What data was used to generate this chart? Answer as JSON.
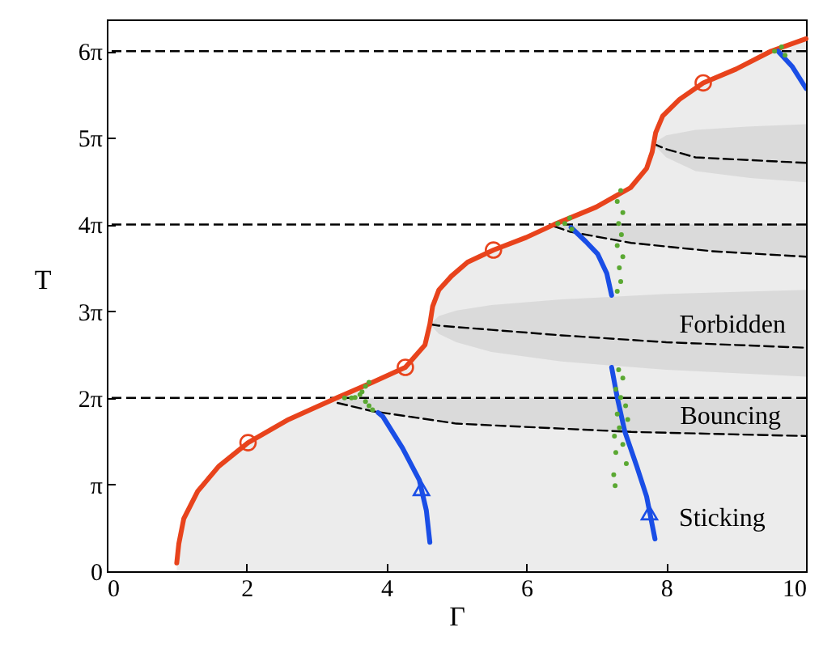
{
  "chart_data": {
    "type": "line",
    "xlabel": "Γ",
    "ylabel": "T",
    "xlim": [
      0,
      10
    ],
    "ylim": [
      0,
      20
    ],
    "xticks": [
      0,
      2,
      4,
      6,
      8,
      10
    ],
    "yticks": [
      0,
      {
        "value": 3.1416,
        "label": "π"
      },
      {
        "value": 6.2832,
        "label": "2π"
      },
      {
        "value": 9.4248,
        "label": "3π"
      },
      {
        "value": 12.5664,
        "label": "4π"
      },
      {
        "value": 15.708,
        "label": "5π"
      },
      {
        "value": 18.8496,
        "label": "6π"
      }
    ],
    "grid": false,
    "series": [
      {
        "type": "line",
        "color": "#000000",
        "line_style": "dashed",
        "x": [
          3.3,
          3.8,
          5.0,
          7.5,
          10
        ],
        "values": [
          6.1,
          5.8,
          5.35,
          5.05,
          4.9
        ],
        "lower": [
          6.1,
          5.8,
          5.35,
          5.05,
          4.9
        ],
        "upper": [
          6.2832,
          6.2832,
          6.2832,
          6.2832,
          6.2832
        ]
      },
      {
        "type": "line",
        "color": "#000000",
        "line_style": "dashed",
        "x": [
          6.4,
          6.63,
          7.5,
          8.65,
          10
        ],
        "values": [
          12.5,
          12.3,
          11.9,
          11.6,
          11.4
        ],
        "lower": [
          12.5,
          12.3,
          11.9,
          11.6,
          11.4
        ],
        "upper": [
          12.5664,
          12.5664,
          12.5664,
          12.5664,
          12.5664
        ]
      },
      {
        "type": "line",
        "color": "#000000",
        "line_style": "dashed",
        "x": [
          4.62,
          4.75,
          5.0,
          5.5,
          6.5,
          8,
          10
        ],
        "values": [
          8.95,
          8.9,
          8.85,
          8.75,
          8.55,
          8.3,
          8.1
        ],
        "lower": [
          8.95,
          8.6,
          8.3,
          7.95,
          7.6,
          7.3,
          7.05
        ],
        "upper": [
          8.95,
          9.25,
          9.45,
          9.65,
          9.85,
          10.05,
          10.2
        ]
      },
      {
        "type": "line",
        "color": "#000000",
        "line_style": "dashed",
        "x": [
          7.81,
          8.0,
          8.42,
          9.2,
          10
        ],
        "values": [
          15.5,
          15.3,
          15.0,
          14.9,
          14.8
        ],
        "lower": [
          15.5,
          15.0,
          14.5,
          14.25,
          14.1
        ],
        "upper": [
          15.5,
          15.8,
          16.0,
          16.12,
          16.2
        ]
      },
      {
        "color": "#1a4ee6",
        "line_style": "solid",
        "x": [
          3.88,
          3.95,
          4.23,
          4.47,
          4.57,
          4.62
        ],
        "values": [
          5.75,
          5.6,
          4.46,
          3.3,
          2.2,
          1.05
        ]
      },
      {
        "color": "#1a4ee6",
        "line_style": "solid",
        "x": [
          6.64,
          6.85,
          7.02,
          7.15,
          7.22
        ],
        "values": [
          12.46,
          11.95,
          11.5,
          10.8,
          10.0
        ]
      },
      {
        "color": "#1a4ee6",
        "line_style": "solid",
        "x": [
          7.22,
          7.3,
          7.41,
          7.58,
          7.72,
          7.84
        ],
        "values": [
          7.39,
          6.3,
          5.05,
          3.8,
          2.71,
          1.17
        ]
      },
      {
        "color": "#1a4ee6",
        "line_style": "solid",
        "x": [
          9.6,
          9.8,
          10
        ],
        "values": [
          18.85,
          18.3,
          17.5
        ]
      },
      {
        "type": "scatter",
        "color": "#5aa832",
        "marker": "circle",
        "x": [
          3.4,
          3.5,
          3.55,
          3.62,
          3.65,
          3.7,
          3.75,
          3.7,
          3.75,
          3.8,
          6.45,
          6.55,
          6.62,
          6.65,
          7.35,
          7.3,
          7.38,
          7.32,
          7.36,
          7.3,
          7.38,
          7.33,
          7.35,
          7.3,
          7.32,
          7.38,
          7.28,
          7.35,
          7.42,
          7.3,
          7.45,
          7.33,
          7.26,
          7.38,
          7.28,
          7.43,
          7.25,
          7.27,
          9.55,
          9.65,
          9.7
        ],
        "values": [
          6.28,
          6.28,
          6.3,
          6.4,
          6.5,
          6.7,
          6.85,
          6.15,
          6.0,
          5.85,
          12.6,
          12.6,
          12.8,
          12.4,
          13.8,
          13.4,
          13.0,
          12.6,
          12.2,
          11.8,
          11.4,
          11.0,
          10.5,
          10.15,
          7.3,
          7.0,
          6.6,
          6.3,
          6.0,
          5.7,
          5.5,
          5.2,
          4.9,
          4.6,
          4.3,
          3.9,
          3.5,
          3.1,
          18.85,
          19.0,
          18.7
        ]
      },
      {
        "color": "#e8431c",
        "line_style": "solid",
        "x": [
          1.0,
          1.03,
          1.1,
          1.3,
          1.6,
          2.02,
          2.6,
          3.3,
          3.8,
          4.27,
          4.55,
          4.62,
          4.66,
          4.75,
          4.93,
          5.16,
          5.53,
          6.0,
          6.4,
          7.0,
          7.49,
          7.72,
          7.8,
          7.85,
          7.95,
          8.19,
          8.53,
          9.0,
          9.5,
          10
        ],
        "values": [
          0.3,
          1.0,
          1.9,
          2.9,
          3.8,
          4.66,
          5.5,
          6.3,
          6.85,
          7.39,
          8.2,
          8.95,
          9.6,
          10.2,
          10.7,
          11.2,
          11.64,
          12.1,
          12.57,
          13.2,
          13.9,
          14.6,
          15.2,
          15.9,
          16.5,
          17.1,
          17.7,
          18.2,
          18.85,
          19.3
        ],
        "lower": [
          0,
          0,
          0,
          0,
          0,
          0,
          0,
          0,
          0,
          0,
          0,
          0,
          0,
          0,
          0,
          0,
          0,
          0,
          0,
          0,
          0,
          0,
          0,
          0,
          0,
          0,
          0,
          0,
          0,
          0
        ],
        "upper": [
          0.3,
          1.0,
          1.9,
          2.9,
          3.8,
          4.66,
          5.5,
          6.3,
          6.85,
          7.39,
          8.2,
          8.95,
          9.6,
          10.2,
          10.7,
          11.2,
          11.64,
          12.1,
          12.57,
          13.2,
          13.9,
          14.6,
          15.2,
          15.9,
          16.5,
          17.1,
          17.7,
          18.2,
          18.85,
          19.3
        ]
      },
      {
        "type": "scatter",
        "color": "#e8431c",
        "marker": "circle",
        "x": [
          2.02,
          4.27,
          5.53,
          8.53
        ],
        "values": [
          4.66,
          7.39,
          11.64,
          17.7
        ]
      },
      {
        "type": "scatter",
        "color": "#1a4ee6",
        "marker": "triangle",
        "x": [
          4.5,
          7.76
        ],
        "values": [
          3.0,
          2.12
        ]
      }
    ],
    "ref_lines": [
      {
        "axis": "y",
        "value": 6.2832,
        "line_style": "dashed",
        "color": "#000000"
      },
      {
        "axis": "y",
        "value": 12.5664,
        "line_style": "dashed",
        "color": "#000000"
      },
      {
        "axis": "y",
        "value": 18.8496,
        "line_style": "dashed",
        "color": "#000000"
      }
    ],
    "annotations": [
      "Forbidden",
      "Bouncing",
      "Sticking"
    ]
  }
}
